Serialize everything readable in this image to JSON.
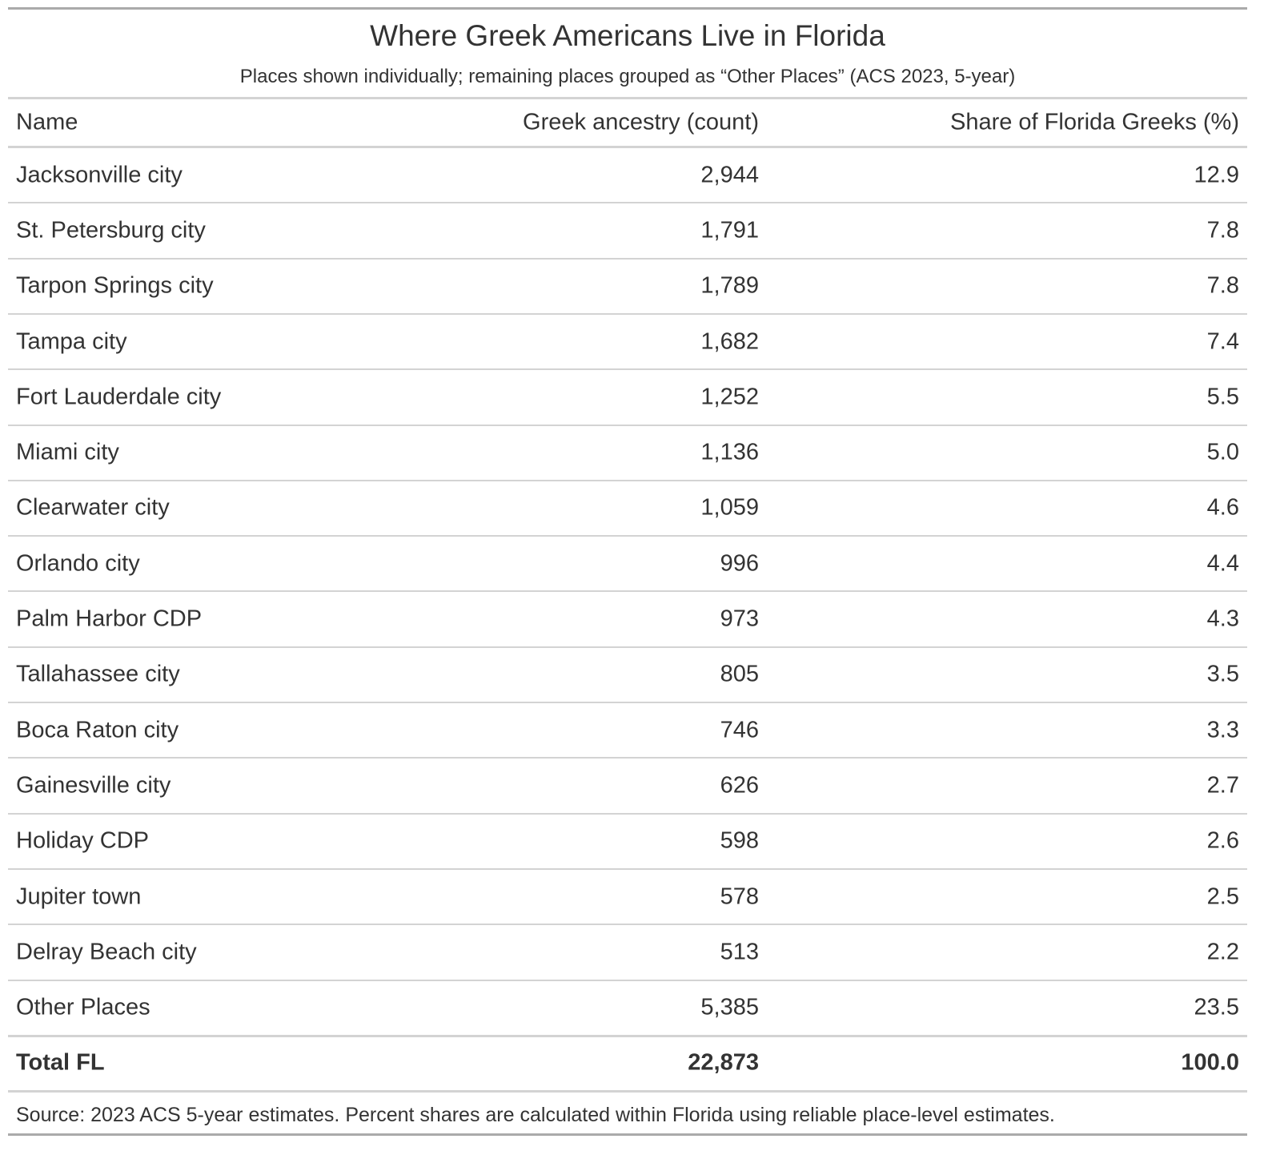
{
  "header": {
    "title": "Where Greek Americans Live in Florida",
    "subtitle": "Places shown individually; remaining places grouped as “Other Places” (ACS 2023, 5-year)"
  },
  "table": {
    "columns": [
      "Name",
      "Greek ancestry (count)",
      "Share of Florida Greeks (%)"
    ],
    "rows": [
      [
        "Jacksonville city",
        "2,944",
        "12.9"
      ],
      [
        "St. Petersburg city",
        "1,791",
        "7.8"
      ],
      [
        "Tarpon Springs city",
        "1,789",
        "7.8"
      ],
      [
        "Tampa city",
        "1,682",
        "7.4"
      ],
      [
        "Fort Lauderdale city",
        "1,252",
        "5.5"
      ],
      [
        "Miami city",
        "1,136",
        "5.0"
      ],
      [
        "Clearwater city",
        "1,059",
        "4.6"
      ],
      [
        "Orlando city",
        "996",
        "4.4"
      ],
      [
        "Palm Harbor CDP",
        "973",
        "4.3"
      ],
      [
        "Tallahassee city",
        "805",
        "3.5"
      ],
      [
        "Boca Raton city",
        "746",
        "3.3"
      ],
      [
        "Gainesville city",
        "626",
        "2.7"
      ],
      [
        "Holiday CDP",
        "598",
        "2.6"
      ],
      [
        "Jupiter town",
        "578",
        "2.5"
      ],
      [
        "Delray Beach city",
        "513",
        "2.2"
      ],
      [
        "Other Places",
        "5,385",
        "23.5"
      ]
    ],
    "total": [
      "Total FL",
      "22,873",
      "100.0"
    ]
  },
  "footer": {
    "source": "Source: 2023 ACS 5-year estimates. Percent shares are calculated within Florida using reliable place-level estimates."
  }
}
